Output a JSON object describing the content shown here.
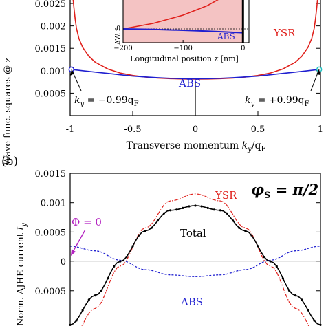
{
  "chart_data": [
    {
      "type": "line",
      "ylabel": "Wave func. squares @ z",
      "xlabel": "Transverse momentum",
      "xlabel_var": "k",
      "xlabel_sub": "y",
      "xlabel_den": "/q",
      "xlabel_den_sub": "F",
      "xlim": [
        -1,
        1
      ],
      "ylim": [
        0,
        0.0027
      ],
      "xticks": [
        -1,
        -0.5,
        0,
        0.5,
        1
      ],
      "xtick_labels": [
        "-1",
        "-0.5",
        "0",
        "0.5",
        "1"
      ],
      "yticks": [
        0.0005,
        0.001,
        0.0015,
        0.002,
        0.0025
      ],
      "ytick_labels": [
        "0.0005",
        "0.001",
        "0.0015",
        "0.002",
        "0.0025"
      ],
      "series": [
        {
          "name": "YSR",
          "color": "#e0201b",
          "x": [
            -0.98,
            -0.97,
            -0.96,
            -0.95,
            -0.93,
            -0.9,
            -0.85,
            -0.8,
            -0.7,
            -0.6,
            -0.5,
            -0.4,
            -0.3,
            -0.2,
            -0.1,
            0,
            0.1,
            0.2,
            0.3,
            0.4,
            0.5,
            0.6,
            0.7,
            0.8,
            0.85,
            0.9,
            0.93,
            0.95,
            0.96,
            0.97,
            0.98
          ],
          "values": [
            0.0027,
            0.0024,
            0.00215,
            0.00195,
            0.00172,
            0.00152,
            0.00132,
            0.00119,
            0.00104,
            0.00095,
            0.000895,
            0.00086,
            0.000838,
            0.000824,
            0.000816,
            0.000813,
            0.000816,
            0.000824,
            0.000838,
            0.00086,
            0.000895,
            0.00095,
            0.00104,
            0.00119,
            0.00132,
            0.00152,
            0.00172,
            0.00195,
            0.00215,
            0.0024,
            0.0027
          ]
        },
        {
          "name": "ABS",
          "color": "#1f1fd0",
          "x": [
            -0.99,
            -0.9,
            -0.8,
            -0.7,
            -0.6,
            -0.5,
            -0.4,
            -0.3,
            -0.2,
            -0.1,
            0,
            0.1,
            0.2,
            0.3,
            0.4,
            0.5,
            0.6,
            0.7,
            0.8,
            0.9,
            0.99
          ],
          "values": [
            0.00103,
            0.001,
            0.00097,
            0.00094,
            0.00091,
            0.00088,
            0.000862,
            0.000845,
            0.000832,
            0.000824,
            0.00082,
            0.000824,
            0.000832,
            0.000845,
            0.000862,
            0.00088,
            0.00091,
            0.00094,
            0.00097,
            0.001,
            0.00103
          ]
        }
      ],
      "markers": [
        {
          "x": -0.99,
          "y": 0.00103,
          "label_var": "k",
          "label_sub": "y",
          "label_eq": " = −0.99q",
          "label_sub2": "F",
          "color": "#1f1fd0"
        },
        {
          "x": 0.99,
          "y": 0.00103,
          "label_var": "k",
          "label_sub": "y",
          "label_eq": " = +0.99q",
          "label_sub2": "F",
          "color": "#22c0c0"
        }
      ],
      "annotations": [
        "YSR",
        "ABS"
      ]
    },
    {
      "type": "line",
      "xlabel": "Longitudinal position",
      "xlabel_var": "z",
      "xlabel_unit": " [nm]",
      "ylabel": "ΔW. f.",
      "xlim": [
        -200,
        10
      ],
      "xticks": [
        -200,
        -100,
        0
      ],
      "xtick_labels": [
        "−200",
        "−100",
        "0"
      ],
      "yticks": [
        0
      ],
      "ytick_labels": [
        "0"
      ],
      "series": [
        {
          "name": "YSR",
          "color": "#e0201b",
          "x": [
            -200,
            -150,
            -100,
            -60,
            -30,
            -10,
            0
          ],
          "values": [
            0.0,
            0.1,
            0.25,
            0.42,
            0.6,
            0.8,
            0.95
          ]
        },
        {
          "name": "ABS",
          "color": "#1f1fd0",
          "x": [
            -200,
            -150,
            -100,
            -60,
            -30,
            -10,
            0
          ],
          "values": [
            0.0,
            -0.01,
            -0.025,
            -0.04,
            -0.055,
            -0.065,
            -0.07
          ]
        }
      ],
      "annotations": [
        "ABS"
      ]
    },
    {
      "type": "line",
      "panel_label": "(b)",
      "ylabel_text": "Norm. AJHE current ",
      "ylabel_var": "I",
      "ylabel_sub": "y",
      "phase_label": "φ",
      "phase_sub": "S",
      "phase_eq": " = π/2",
      "ylim": [
        -0.0011,
        0.0015
      ],
      "yticks": [
        -0.0005,
        0,
        0.0005,
        0.001,
        0.0015
      ],
      "ytick_labels": [
        "-0.0005",
        "0",
        "0.0005",
        "0.001",
        "0.0015"
      ],
      "series": [
        {
          "name": "Total",
          "color": "#000000",
          "x": [
            0,
            0.1,
            0.2,
            0.3,
            0.4,
            0.5,
            0.6,
            0.7,
            0.8,
            0.9,
            1
          ],
          "values": [
            -0.00108,
            -0.00058,
            0.0,
            0.00052,
            0.00087,
            0.00095,
            0.00087,
            0.00052,
            0.0,
            -0.00058,
            -0.00108
          ]
        },
        {
          "name": "YSR",
          "color": "#e0201b",
          "x": [
            0,
            0.1,
            0.2,
            0.3,
            0.4,
            0.5,
            0.6,
            0.7,
            0.8,
            0.9,
            1
          ],
          "values": [
            -0.00135,
            -0.0008,
            -8e-05,
            0.00057,
            0.00103,
            0.00115,
            0.00103,
            0.00057,
            -8e-05,
            -0.0008,
            -0.00135
          ]
        },
        {
          "name": "ABS",
          "color": "#1f1fd0",
          "x": [
            0,
            0.1,
            0.2,
            0.3,
            0.4,
            0.5,
            0.6,
            0.7,
            0.8,
            0.9,
            1
          ],
          "values": [
            0.00026,
            0.00018,
            2e-05,
            -0.00014,
            -0.00023,
            -0.00026,
            -0.00023,
            -0.00014,
            2e-05,
            0.00018,
            0.00026
          ]
        }
      ],
      "annotations": [
        "YSR",
        "Total",
        "ABS"
      ],
      "phi_annotation": "Φ = 0",
      "phi_color": "#b321c0"
    }
  ]
}
